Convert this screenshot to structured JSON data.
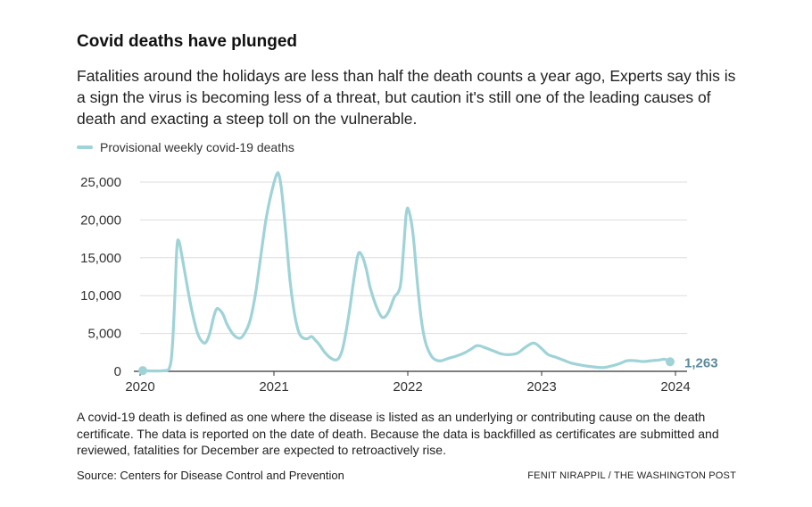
{
  "chart_data": {
    "type": "line",
    "title": "Covid deaths have plunged",
    "subtitle": "Fatalities around the holidays are less than half the death counts a year ago, Experts say this is a sign the virus is becoming less of a threat, but caution it's still one of the leading causes of death and exacting a steep toll on the vulnerable.",
    "legend": [
      "Provisional weekly covid-19 deaths"
    ],
    "legend_position": "top-left",
    "grid": true,
    "xlabel": "",
    "ylabel": "",
    "xlim": [
      2020.0,
      2024.0
    ],
    "ylim": [
      0,
      25000
    ],
    "x_ticks": [
      "2020",
      "2021",
      "2022",
      "2023",
      "2024"
    ],
    "y_ticks": [
      "0",
      "5,000",
      "10,000",
      "15,000",
      "20,000",
      "25,000"
    ],
    "end_label": "1,263",
    "series": [
      {
        "name": "Provisional weekly covid-19 deaths",
        "color": "#9fd3d8",
        "points": [
          [
            2020.02,
            100
          ],
          [
            2020.1,
            50
          ],
          [
            2020.18,
            100
          ],
          [
            2020.22,
            500
          ],
          [
            2020.24,
            3000
          ],
          [
            2020.26,
            10000
          ],
          [
            2020.275,
            16400
          ],
          [
            2020.29,
            17200
          ],
          [
            2020.31,
            15500
          ],
          [
            2020.34,
            12500
          ],
          [
            2020.37,
            9500
          ],
          [
            2020.4,
            7000
          ],
          [
            2020.43,
            5000
          ],
          [
            2020.46,
            4000
          ],
          [
            2020.49,
            3800
          ],
          [
            2020.52,
            5000
          ],
          [
            2020.55,
            7200
          ],
          [
            2020.57,
            8200
          ],
          [
            2020.59,
            8200
          ],
          [
            2020.62,
            7500
          ],
          [
            2020.65,
            6200
          ],
          [
            2020.69,
            5000
          ],
          [
            2020.72,
            4500
          ],
          [
            2020.75,
            4400
          ],
          [
            2020.78,
            5000
          ],
          [
            2020.82,
            6600
          ],
          [
            2020.86,
            10000
          ],
          [
            2020.9,
            15000
          ],
          [
            2020.94,
            20000
          ],
          [
            2020.98,
            23500
          ],
          [
            2021.02,
            26000
          ],
          [
            2021.04,
            25800
          ],
          [
            2021.06,
            23500
          ],
          [
            2021.09,
            18000
          ],
          [
            2021.12,
            12000
          ],
          [
            2021.15,
            8000
          ],
          [
            2021.18,
            5500
          ],
          [
            2021.21,
            4500
          ],
          [
            2021.25,
            4300
          ],
          [
            2021.28,
            4600
          ],
          [
            2021.31,
            4100
          ],
          [
            2021.34,
            3500
          ],
          [
            2021.38,
            2500
          ],
          [
            2021.42,
            1800
          ],
          [
            2021.46,
            1500
          ],
          [
            2021.49,
            1900
          ],
          [
            2021.52,
            3500
          ],
          [
            2021.56,
            7500
          ],
          [
            2021.6,
            12500
          ],
          [
            2021.63,
            15500
          ],
          [
            2021.66,
            15200
          ],
          [
            2021.69,
            13500
          ],
          [
            2021.72,
            11000
          ],
          [
            2021.76,
            8800
          ],
          [
            2021.8,
            7300
          ],
          [
            2021.83,
            7200
          ],
          [
            2021.86,
            8000
          ],
          [
            2021.9,
            9800
          ],
          [
            2021.93,
            10500
          ],
          [
            2021.95,
            12000
          ],
          [
            2021.97,
            16500
          ],
          [
            2021.99,
            21000
          ],
          [
            2022.01,
            21100
          ],
          [
            2022.04,
            18000
          ],
          [
            2022.07,
            12000
          ],
          [
            2022.1,
            7000
          ],
          [
            2022.13,
            4000
          ],
          [
            2022.17,
            2200
          ],
          [
            2022.21,
            1500
          ],
          [
            2022.25,
            1400
          ],
          [
            2022.3,
            1700
          ],
          [
            2022.36,
            2000
          ],
          [
            2022.42,
            2400
          ],
          [
            2022.47,
            2900
          ],
          [
            2022.52,
            3400
          ],
          [
            2022.58,
            3100
          ],
          [
            2022.64,
            2700
          ],
          [
            2022.7,
            2300
          ],
          [
            2022.76,
            2200
          ],
          [
            2022.82,
            2400
          ],
          [
            2022.88,
            3200
          ],
          [
            2022.93,
            3700
          ],
          [
            2022.96,
            3600
          ],
          [
            2023.0,
            3000
          ],
          [
            2023.05,
            2200
          ],
          [
            2023.1,
            1900
          ],
          [
            2023.16,
            1500
          ],
          [
            2023.22,
            1100
          ],
          [
            2023.3,
            800
          ],
          [
            2023.38,
            600
          ],
          [
            2023.46,
            500
          ],
          [
            2023.52,
            700
          ],
          [
            2023.58,
            1000
          ],
          [
            2023.64,
            1400
          ],
          [
            2023.7,
            1400
          ],
          [
            2023.76,
            1300
          ],
          [
            2023.82,
            1400
          ],
          [
            2023.88,
            1500
          ],
          [
            2023.92,
            1600
          ],
          [
            2023.96,
            1263
          ]
        ]
      }
    ]
  },
  "note": "A covid-19 death is defined as one where the disease is listed as an underlying or contributing cause on the death certificate. The data is reported on the date of death. Because the data is backfilled as certificates are submitted and reviewed, fatalities for December are expected to retroactively rise.",
  "source": "Source: Centers for Disease Control and Prevention",
  "credit": "FENIT NIRAPPIL / THE WASHINGTON POST"
}
